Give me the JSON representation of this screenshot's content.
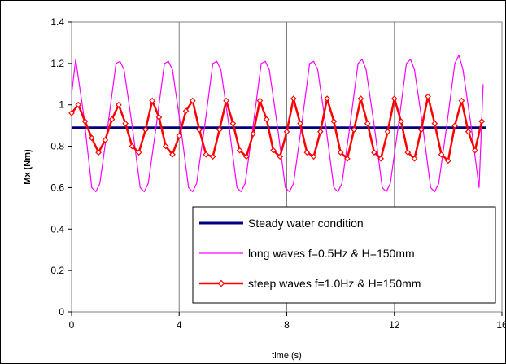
{
  "chart_data": {
    "type": "line",
    "xlabel": "time (s)",
    "ylabel": "Mx (Nm)",
    "xlim": [
      0,
      16
    ],
    "ylim": [
      0,
      1.4
    ],
    "x_ticks": [
      "0",
      "4",
      "8",
      "12",
      "16"
    ],
    "y_ticks": [
      "0",
      "0.2",
      "0.4",
      "0.6",
      "0.8",
      "1",
      "1.2",
      "1.4"
    ],
    "grid": "vertical",
    "legend_position": "bottom-right",
    "series": [
      {
        "name": "Steady water condition",
        "color": "#000080",
        "style": "thick-line",
        "x": [
          0,
          15.4
        ],
        "y": [
          0.89,
          0.89
        ]
      },
      {
        "name": "long waves f=0.5Hz & H=150mm",
        "color": "#FF00FF",
        "style": "thin-line",
        "x": [
          0.0,
          0.15,
          0.45,
          0.75,
          0.9,
          1.05,
          1.35,
          1.65,
          1.8,
          1.95,
          2.25,
          2.55,
          2.7,
          2.85,
          3.15,
          3.45,
          3.6,
          3.75,
          4.05,
          4.35,
          4.5,
          4.65,
          4.95,
          5.25,
          5.4,
          5.55,
          5.85,
          6.15,
          6.3,
          6.45,
          6.75,
          7.05,
          7.2,
          7.35,
          7.65,
          7.95,
          8.1,
          8.25,
          8.55,
          8.85,
          9.0,
          9.15,
          9.45,
          9.75,
          9.9,
          10.05,
          10.35,
          10.65,
          10.8,
          10.95,
          11.25,
          11.55,
          11.7,
          11.85,
          12.15,
          12.45,
          12.6,
          12.75,
          13.05,
          13.35,
          13.5,
          13.65,
          13.95,
          14.25,
          14.4,
          14.55,
          14.85,
          15.15,
          15.3
        ],
        "y": [
          1.05,
          1.22,
          0.95,
          0.6,
          0.58,
          0.62,
          0.9,
          1.2,
          1.21,
          1.17,
          0.9,
          0.6,
          0.58,
          0.62,
          0.9,
          1.2,
          1.21,
          1.17,
          0.9,
          0.6,
          0.58,
          0.62,
          0.9,
          1.2,
          1.21,
          1.17,
          0.9,
          0.6,
          0.58,
          0.62,
          0.9,
          1.2,
          1.21,
          1.17,
          0.9,
          0.6,
          0.58,
          0.62,
          0.9,
          1.2,
          1.21,
          1.17,
          0.9,
          0.6,
          0.58,
          0.62,
          0.9,
          1.2,
          1.22,
          1.17,
          0.9,
          0.6,
          0.58,
          0.62,
          0.9,
          1.2,
          1.22,
          1.17,
          0.9,
          0.6,
          0.58,
          0.62,
          0.9,
          1.2,
          1.24,
          1.17,
          0.9,
          0.6,
          1.1
        ]
      },
      {
        "name": "steep waves f=1.0Hz & H=150mm",
        "color": "#FF0000",
        "style": "line-with-diamond-markers",
        "x": [
          0.0,
          0.25,
          0.5,
          0.75,
          1.0,
          1.25,
          1.5,
          1.75,
          2.0,
          2.25,
          2.5,
          2.75,
          3.0,
          3.25,
          3.5,
          3.75,
          4.0,
          4.25,
          4.5,
          4.75,
          5.0,
          5.25,
          5.5,
          5.75,
          6.0,
          6.25,
          6.5,
          6.75,
          7.0,
          7.25,
          7.5,
          7.75,
          8.0,
          8.25,
          8.5,
          8.75,
          9.0,
          9.25,
          9.5,
          9.75,
          10.0,
          10.25,
          10.5,
          10.75,
          11.0,
          11.25,
          11.5,
          11.75,
          12.0,
          12.25,
          12.5,
          12.75,
          13.0,
          13.25,
          13.5,
          13.75,
          14.0,
          14.25,
          14.5,
          14.75,
          15.0,
          15.25
        ],
        "y": [
          0.96,
          1.0,
          0.92,
          0.84,
          0.77,
          0.83,
          0.93,
          1.0,
          0.91,
          0.8,
          0.77,
          0.88,
          1.02,
          0.94,
          0.8,
          0.76,
          0.85,
          0.97,
          1.02,
          0.88,
          0.76,
          0.75,
          0.88,
          1.02,
          0.91,
          0.78,
          0.75,
          0.86,
          1.02,
          0.93,
          0.78,
          0.75,
          0.87,
          1.03,
          0.91,
          0.77,
          0.75,
          0.87,
          1.03,
          0.92,
          0.77,
          0.74,
          0.88,
          1.03,
          0.91,
          0.77,
          0.74,
          0.87,
          1.03,
          0.92,
          0.77,
          0.74,
          0.88,
          1.04,
          0.91,
          0.76,
          0.73,
          0.9,
          1.02,
          0.87,
          0.78,
          0.92
        ]
      }
    ]
  }
}
